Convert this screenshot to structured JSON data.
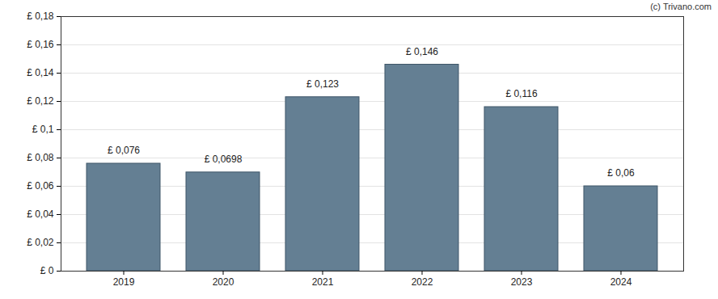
{
  "chart_data": {
    "type": "bar",
    "annotations": [
      "(c) Trivano.com"
    ],
    "categories": [
      "2019",
      "2020",
      "2021",
      "2022",
      "2023",
      "2024"
    ],
    "values": [
      0.076,
      0.0698,
      0.123,
      0.146,
      0.116,
      0.06
    ],
    "value_labels": [
      "£ 0,076",
      "£ 0,0698",
      "£ 0,123",
      "£ 0,146",
      "£ 0,116",
      "£ 0,06"
    ],
    "data_labels": true,
    "color": "#647f93",
    "ylim": [
      0,
      0.18
    ],
    "yticks": [
      {
        "value": 0,
        "label": "£ 0"
      },
      {
        "value": 0.02,
        "label": "£ 0,02"
      },
      {
        "value": 0.04,
        "label": "£ 0,04"
      },
      {
        "value": 0.06,
        "label": "£ 0,06"
      },
      {
        "value": 0.08,
        "label": "£ 0,08"
      },
      {
        "value": 0.1,
        "label": "£ 0,1"
      },
      {
        "value": 0.12,
        "label": "£ 0,12"
      },
      {
        "value": 0.14,
        "label": "£ 0,14"
      },
      {
        "value": 0.16,
        "label": "£ 0,16"
      },
      {
        "value": 0.18,
        "label": "£ 0,18"
      }
    ],
    "grid": true
  }
}
